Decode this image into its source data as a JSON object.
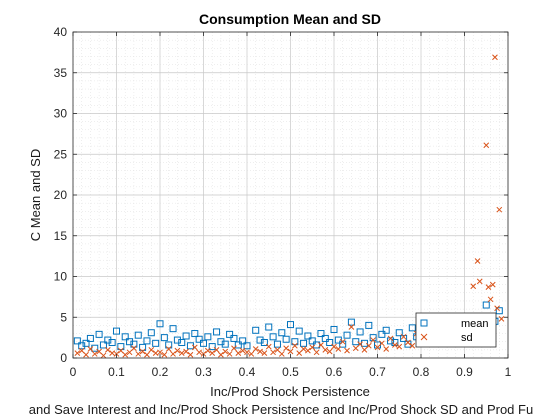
{
  "chart_data": {
    "type": "scatter",
    "title": "Consumption Mean and SD",
    "xlabel": "Inc/Prod Shock Persistence",
    "ylabel": "C Mean and SD",
    "bottom_caption": "and Save Interest and Inc/Prod Shock Persistence and Inc/Prod Shock SD and Prod Fu",
    "xlim": [
      0,
      1
    ],
    "ylim": [
      0,
      40
    ],
    "xticks": [
      "0",
      "0.1",
      "0.2",
      "0.3",
      "0.4",
      "0.5",
      "0.6",
      "0.7",
      "0.8",
      "0.9",
      "1"
    ],
    "yticks": [
      "0",
      "5",
      "10",
      "15",
      "20",
      "25",
      "30",
      "35",
      "40"
    ],
    "grid": "on-minor",
    "legend": {
      "placement": "bottom-right",
      "entries": [
        "mean",
        "sd"
      ]
    },
    "series": [
      {
        "name": "mean",
        "marker": "square",
        "color": "#0072BD",
        "points": [
          [
            0.01,
            2.1
          ],
          [
            0.02,
            1.5
          ],
          [
            0.03,
            1.8
          ],
          [
            0.04,
            2.4
          ],
          [
            0.05,
            1.2
          ],
          [
            0.06,
            2.9
          ],
          [
            0.07,
            1.6
          ],
          [
            0.08,
            2.2
          ],
          [
            0.09,
            1.9
          ],
          [
            0.1,
            3.3
          ],
          [
            0.11,
            1.4
          ],
          [
            0.12,
            2.6
          ],
          [
            0.13,
            2.0
          ],
          [
            0.14,
            1.7
          ],
          [
            0.15,
            2.8
          ],
          [
            0.16,
            1.3
          ],
          [
            0.17,
            2.1
          ],
          [
            0.18,
            3.1
          ],
          [
            0.19,
            1.8
          ],
          [
            0.2,
            4.2
          ],
          [
            0.21,
            2.5
          ],
          [
            0.22,
            1.6
          ],
          [
            0.23,
            3.6
          ],
          [
            0.24,
            2.2
          ],
          [
            0.25,
            1.9
          ],
          [
            0.26,
            2.7
          ],
          [
            0.27,
            1.5
          ],
          [
            0.28,
            3.0
          ],
          [
            0.29,
            2.3
          ],
          [
            0.3,
            1.8
          ],
          [
            0.31,
            2.6
          ],
          [
            0.32,
            1.4
          ],
          [
            0.33,
            3.2
          ],
          [
            0.34,
            2.0
          ],
          [
            0.35,
            1.7
          ],
          [
            0.36,
            2.9
          ],
          [
            0.37,
            2.4
          ],
          [
            0.38,
            1.6
          ],
          [
            0.39,
            2.1
          ],
          [
            0.4,
            1.5
          ],
          [
            0.42,
            3.4
          ],
          [
            0.43,
            2.2
          ],
          [
            0.44,
            1.9
          ],
          [
            0.45,
            3.8
          ],
          [
            0.46,
            2.6
          ],
          [
            0.47,
            1.7
          ],
          [
            0.48,
            3.1
          ],
          [
            0.49,
            2.3
          ],
          [
            0.5,
            4.1
          ],
          [
            0.51,
            2.0
          ],
          [
            0.52,
            3.3
          ],
          [
            0.53,
            1.8
          ],
          [
            0.54,
            2.7
          ],
          [
            0.55,
            2.1
          ],
          [
            0.56,
            1.6
          ],
          [
            0.57,
            3.0
          ],
          [
            0.58,
            2.4
          ],
          [
            0.59,
            1.9
          ],
          [
            0.6,
            3.5
          ],
          [
            0.61,
            2.2
          ],
          [
            0.62,
            1.7
          ],
          [
            0.63,
            2.8
          ],
          [
            0.64,
            4.4
          ],
          [
            0.65,
            2.0
          ],
          [
            0.66,
            3.2
          ],
          [
            0.67,
            1.8
          ],
          [
            0.68,
            4.0
          ],
          [
            0.69,
            2.5
          ],
          [
            0.7,
            1.6
          ],
          [
            0.71,
            2.9
          ],
          [
            0.72,
            3.4
          ],
          [
            0.73,
            2.1
          ],
          [
            0.74,
            1.9
          ],
          [
            0.75,
            3.1
          ],
          [
            0.76,
            2.4
          ],
          [
            0.77,
            1.7
          ],
          [
            0.78,
            3.7
          ],
          [
            0.79,
            2.6
          ],
          [
            0.8,
            4.3
          ],
          [
            0.81,
            2.0
          ],
          [
            0.82,
            3.2
          ],
          [
            0.83,
            2.5
          ],
          [
            0.84,
            4.6
          ],
          [
            0.85,
            1.9
          ],
          [
            0.86,
            3.5
          ],
          [
            0.87,
            2.8
          ],
          [
            0.88,
            4.0
          ],
          [
            0.89,
            2.3
          ],
          [
            0.9,
            3.6
          ],
          [
            0.91,
            2.1
          ],
          [
            0.92,
            4.9
          ],
          [
            0.93,
            3.0
          ],
          [
            0.94,
            2.4
          ],
          [
            0.95,
            6.5
          ],
          [
            0.96,
            3.8
          ],
          [
            0.97,
            4.5
          ],
          [
            0.98,
            5.8
          ]
        ]
      },
      {
        "name": "sd",
        "marker": "x",
        "color": "#D95319",
        "points": [
          [
            0.01,
            0.6
          ],
          [
            0.02,
            0.9
          ],
          [
            0.03,
            0.4
          ],
          [
            0.04,
            1.1
          ],
          [
            0.05,
            0.5
          ],
          [
            0.06,
            0.8
          ],
          [
            0.07,
            0.3
          ],
          [
            0.08,
            1.0
          ],
          [
            0.09,
            0.6
          ],
          [
            0.1,
            0.5
          ],
          [
            0.11,
            0.9
          ],
          [
            0.12,
            0.4
          ],
          [
            0.13,
            0.7
          ],
          [
            0.14,
            1.2
          ],
          [
            0.15,
            0.5
          ],
          [
            0.16,
            0.8
          ],
          [
            0.17,
            0.4
          ],
          [
            0.18,
            1.0
          ],
          [
            0.19,
            0.6
          ],
          [
            0.2,
            0.7
          ],
          [
            0.21,
            0.4
          ],
          [
            0.22,
            1.1
          ],
          [
            0.23,
            0.5
          ],
          [
            0.24,
            0.9
          ],
          [
            0.25,
            0.6
          ],
          [
            0.26,
            0.8
          ],
          [
            0.27,
            0.4
          ],
          [
            0.28,
            1.3
          ],
          [
            0.29,
            0.7
          ],
          [
            0.3,
            0.5
          ],
          [
            0.31,
            0.9
          ],
          [
            0.32,
            0.6
          ],
          [
            0.33,
            1.0
          ],
          [
            0.34,
            0.4
          ],
          [
            0.35,
            0.8
          ],
          [
            0.36,
            0.5
          ],
          [
            0.37,
            1.2
          ],
          [
            0.38,
            0.6
          ],
          [
            0.39,
            0.9
          ],
          [
            0.4,
            0.7
          ],
          [
            0.41,
            0.5
          ],
          [
            0.42,
            1.1
          ],
          [
            0.43,
            0.8
          ],
          [
            0.44,
            0.6
          ],
          [
            0.45,
            1.4
          ],
          [
            0.46,
            0.7
          ],
          [
            0.47,
            1.0
          ],
          [
            0.48,
            0.5
          ],
          [
            0.49,
            1.2
          ],
          [
            0.5,
            0.8
          ],
          [
            0.51,
            1.5
          ],
          [
            0.52,
            0.6
          ],
          [
            0.53,
            1.1
          ],
          [
            0.54,
            0.9
          ],
          [
            0.55,
            1.3
          ],
          [
            0.56,
            0.7
          ],
          [
            0.57,
            1.6
          ],
          [
            0.58,
            1.0
          ],
          [
            0.59,
            0.8
          ],
          [
            0.6,
            1.4
          ],
          [
            0.61,
            1.1
          ],
          [
            0.62,
            2.0
          ],
          [
            0.63,
            0.9
          ],
          [
            0.64,
            3.8
          ],
          [
            0.65,
            1.2
          ],
          [
            0.66,
            1.7
          ],
          [
            0.67,
            1.0
          ],
          [
            0.68,
            1.5
          ],
          [
            0.69,
            2.2
          ],
          [
            0.7,
            1.3
          ],
          [
            0.71,
            1.8
          ],
          [
            0.72,
            1.1
          ],
          [
            0.73,
            2.4
          ],
          [
            0.74,
            1.6
          ],
          [
            0.75,
            1.4
          ],
          [
            0.76,
            2.6
          ],
          [
            0.77,
            1.9
          ],
          [
            0.78,
            1.5
          ],
          [
            0.79,
            3.0
          ],
          [
            0.8,
            2.1
          ],
          [
            0.81,
            1.7
          ],
          [
            0.82,
            3.4
          ],
          [
            0.83,
            2.3
          ],
          [
            0.84,
            2.8
          ],
          [
            0.85,
            1.9
          ],
          [
            0.86,
            3.6
          ],
          [
            0.87,
            2.5
          ],
          [
            0.88,
            4.2
          ],
          [
            0.89,
            3.1
          ],
          [
            0.9,
            3.5
          ],
          [
            0.91,
            2.7
          ],
          [
            0.92,
            8.8
          ],
          [
            0.93,
            11.9
          ],
          [
            0.935,
            9.4
          ],
          [
            0.95,
            26.1
          ],
          [
            0.955,
            8.7
          ],
          [
            0.96,
            7.2
          ],
          [
            0.965,
            9.0
          ],
          [
            0.97,
            36.9
          ],
          [
            0.975,
            6.1
          ],
          [
            0.98,
            18.2
          ],
          [
            0.985,
            4.8
          ]
        ]
      }
    ]
  }
}
